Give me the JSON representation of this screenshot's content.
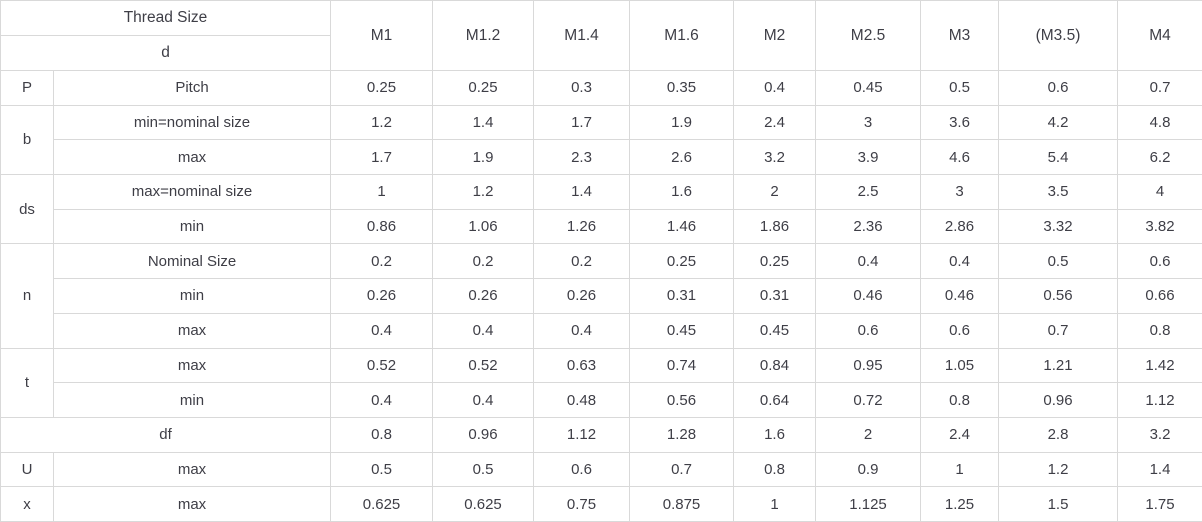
{
  "colors": {
    "background": "#ffffff",
    "text": "#3e3e46",
    "border": "#d9d9d9"
  },
  "table": {
    "header": {
      "corner_top": "Thread Size",
      "corner_bottom": "d",
      "columns": [
        "M1",
        "M1.2",
        "M1.4",
        "M1.6",
        "M2",
        "M2.5",
        "M3",
        "(M3.5)",
        "M4"
      ]
    },
    "groups": [
      {
        "symbol": "P",
        "merged": false,
        "rows": [
          {
            "label": "Pitch",
            "values": [
              "0.25",
              "0.25",
              "0.3",
              "0.35",
              "0.4",
              "0.45",
              "0.5",
              "0.6",
              "0.7"
            ]
          }
        ]
      },
      {
        "symbol": "b",
        "merged": false,
        "rows": [
          {
            "label": "min=nominal size",
            "values": [
              "1.2",
              "1.4",
              "1.7",
              "1.9",
              "2.4",
              "3",
              "3.6",
              "4.2",
              "4.8"
            ]
          },
          {
            "label": "max",
            "values": [
              "1.7",
              "1.9",
              "2.3",
              "2.6",
              "3.2",
              "3.9",
              "4.6",
              "5.4",
              "6.2"
            ]
          }
        ]
      },
      {
        "symbol": "ds",
        "merged": false,
        "rows": [
          {
            "label": "max=nominal size",
            "values": [
              "1",
              "1.2",
              "1.4",
              "1.6",
              "2",
              "2.5",
              "3",
              "3.5",
              "4"
            ]
          },
          {
            "label": "min",
            "values": [
              "0.86",
              "1.06",
              "1.26",
              "1.46",
              "1.86",
              "2.36",
              "2.86",
              "3.32",
              "3.82"
            ]
          }
        ]
      },
      {
        "symbol": "n",
        "merged": false,
        "rows": [
          {
            "label": "Nominal Size",
            "values": [
              "0.2",
              "0.2",
              "0.2",
              "0.25",
              "0.25",
              "0.4",
              "0.4",
              "0.5",
              "0.6"
            ]
          },
          {
            "label": "min",
            "values": [
              "0.26",
              "0.26",
              "0.26",
              "0.31",
              "0.31",
              "0.46",
              "0.46",
              "0.56",
              "0.66"
            ]
          },
          {
            "label": "max",
            "values": [
              "0.4",
              "0.4",
              "0.4",
              "0.45",
              "0.45",
              "0.6",
              "0.6",
              "0.7",
              "0.8"
            ]
          }
        ]
      },
      {
        "symbol": "t",
        "merged": false,
        "rows": [
          {
            "label": "max",
            "values": [
              "0.52",
              "0.52",
              "0.63",
              "0.74",
              "0.84",
              "0.95",
              "1.05",
              "1.21",
              "1.42"
            ]
          },
          {
            "label": "min",
            "values": [
              "0.4",
              "0.4",
              "0.48",
              "0.56",
              "0.64",
              "0.72",
              "0.8",
              "0.96",
              "1.12"
            ]
          }
        ]
      },
      {
        "symbol": "df",
        "merged": true,
        "rows": [
          {
            "values": [
              "0.8",
              "0.96",
              "1.12",
              "1.28",
              "1.6",
              "2",
              "2.4",
              "2.8",
              "3.2"
            ]
          }
        ]
      },
      {
        "symbol": "U",
        "merged": false,
        "rows": [
          {
            "label": "max",
            "values": [
              "0.5",
              "0.5",
              "0.6",
              "0.7",
              "0.8",
              "0.9",
              "1",
              "1.2",
              "1.4"
            ]
          }
        ]
      },
      {
        "symbol": "x",
        "merged": false,
        "rows": [
          {
            "label": "max",
            "values": [
              "0.625",
              "0.625",
              "0.75",
              "0.875",
              "1",
              "1.125",
              "1.25",
              "1.5",
              "1.75"
            ]
          }
        ]
      }
    ]
  }
}
